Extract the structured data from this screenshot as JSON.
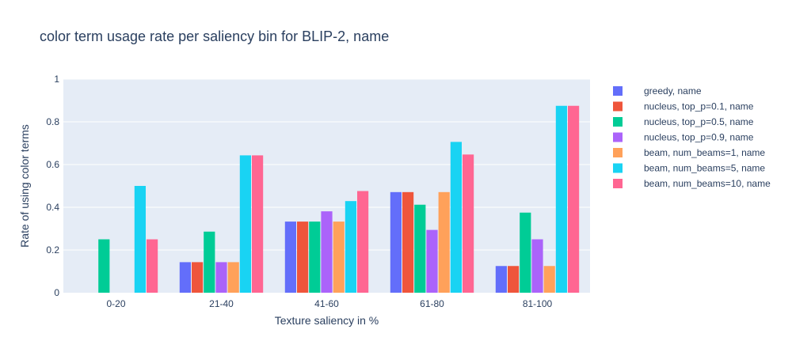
{
  "chart_data": {
    "type": "bar",
    "title": "color term usage rate per saliency bin for BLIP-2, name",
    "xlabel": "Texture saliency in %",
    "ylabel": "Rate of using color terms",
    "ylim": [
      0,
      1
    ],
    "yticks": [
      "0",
      "0.2",
      "0.4",
      "0.6",
      "0.8",
      "1"
    ],
    "ytick_values": [
      0,
      0.2,
      0.4,
      0.6,
      0.8,
      1
    ],
    "grid": true,
    "legend_position": "right",
    "categories": [
      "0-20",
      "21-40",
      "41-60",
      "61-80",
      "81-100"
    ],
    "series": [
      {
        "name": "greedy, name",
        "color": "#636efa",
        "values": [
          0,
          0.143,
          0.333,
          0.471,
          0.125
        ]
      },
      {
        "name": "nucleus, top_p=0.1, name",
        "color": "#ef553b",
        "values": [
          0,
          0.143,
          0.333,
          0.471,
          0.125
        ]
      },
      {
        "name": "nucleus, top_p=0.5, name",
        "color": "#00cc96",
        "values": [
          0.25,
          0.286,
          0.333,
          0.412,
          0.375
        ]
      },
      {
        "name": "nucleus, top_p=0.9, name",
        "color": "#ab63fa",
        "values": [
          0,
          0.143,
          0.381,
          0.294,
          0.25
        ]
      },
      {
        "name": "beam, num_beams=1, name",
        "color": "#ffa15a",
        "values": [
          0,
          0.143,
          0.333,
          0.471,
          0.125
        ]
      },
      {
        "name": "beam, num_beams=5, name",
        "color": "#19d3f3",
        "values": [
          0.5,
          0.643,
          0.429,
          0.706,
          0.875
        ]
      },
      {
        "name": "beam, num_beams=10, name",
        "color": "#ff6692",
        "values": [
          0.25,
          0.643,
          0.476,
          0.647,
          0.875
        ]
      }
    ]
  }
}
